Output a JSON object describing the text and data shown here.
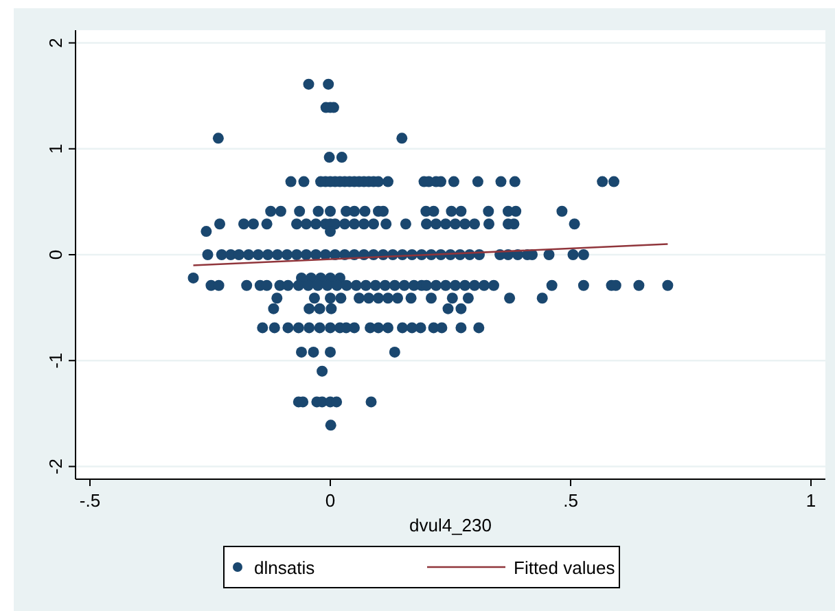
{
  "chart_data": {
    "type": "scatter",
    "xlabel": "dvul4_230",
    "xlim": [
      -0.53,
      1.03
    ],
    "ylim": [
      -2.12,
      2.12
    ],
    "xticks": [
      {
        "value": -0.5,
        "label": "-.5"
      },
      0,
      {
        "value": 0.5,
        "label": ".5"
      },
      1
    ],
    "yticks": [
      -2,
      -1,
      0,
      1,
      2
    ],
    "grid": "y",
    "legend": "bottom",
    "marker": "circle",
    "series": [
      {
        "name": "dlnsatis",
        "color": "#1a476f",
        "x": [
          -0.045,
          -0.004,
          -0.009,
          0,
          0.007,
          -0.233,
          0.149,
          -0.002,
          0.024,
          -0.082,
          -0.055,
          -0.02,
          -0.01,
          0,
          0.01,
          0.02,
          0.03,
          0.04,
          0.05,
          0.06,
          0.07,
          0.08,
          0.09,
          0.1,
          0.12,
          0.195,
          0.205,
          0.22,
          0.23,
          0.257,
          0.307,
          0.355,
          0.384,
          0.566,
          0.59,
          -0.124,
          -0.103,
          -0.064,
          -0.025,
          0,
          0.033,
          0.05,
          0.072,
          0.1,
          0.11,
          0.199,
          0.215,
          0.252,
          0.272,
          0.329,
          0.37,
          0.386,
          0.482,
          -0.23,
          -0.18,
          -0.16,
          -0.132,
          -0.07,
          -0.05,
          -0.03,
          -0.01,
          0,
          0.01,
          0.03,
          0.05,
          0.07,
          0.09,
          0.116,
          0.157,
          0.2,
          0.22,
          0.24,
          0.26,
          0.28,
          0.3,
          0.33,
          0.37,
          0.382,
          0.508,
          -0.258,
          0,
          -0.255,
          -0.226,
          -0.207,
          -0.19,
          -0.17,
          -0.15,
          -0.13,
          -0.11,
          -0.09,
          -0.07,
          -0.05,
          -0.03,
          -0.01,
          0.01,
          0.03,
          0.05,
          0.07,
          0.09,
          0.11,
          0.13,
          0.15,
          0.17,
          0.19,
          0.21,
          0.23,
          0.25,
          0.27,
          0.29,
          0.31,
          0.353,
          0.37,
          0.39,
          0.41,
          0.42,
          0.455,
          0.505,
          0.527,
          -0.285,
          -0.06,
          -0.04,
          -0.02,
          0,
          0.02,
          -0.248,
          -0.232,
          -0.174,
          -0.146,
          -0.132,
          -0.105,
          -0.088,
          -0.066,
          -0.046,
          -0.026,
          -0.006,
          0.014,
          0.034,
          0.054,
          0.074,
          0.094,
          0.114,
          0.134,
          0.154,
          0.174,
          0.19,
          0.2,
          0.22,
          0.24,
          0.26,
          0.28,
          0.3,
          0.32,
          0.34,
          0.461,
          0.527,
          0.585,
          0.594,
          0.642,
          0.702,
          -0.111,
          -0.033,
          0,
          0.022,
          0.06,
          0.08,
          0.1,
          0.12,
          0.14,
          0.168,
          0.21,
          0.254,
          0.287,
          0.373,
          0.441,
          -0.118,
          -0.044,
          -0.022,
          0.002,
          0.245,
          0.272,
          -0.141,
          -0.116,
          -0.088,
          -0.066,
          -0.044,
          -0.022,
          0,
          0.02,
          0.033,
          0.05,
          0.083,
          0.1,
          0.12,
          0.15,
          0.17,
          0.188,
          0.215,
          0.232,
          0.272,
          0.309,
          -0.06,
          -0.035,
          0,
          0.134,
          -0.017,
          -0.066,
          -0.057,
          -0.028,
          -0.017,
          0,
          0.013,
          0.085,
          0.001
        ],
        "values": [
          1.61,
          1.61,
          1.39,
          1.39,
          1.39,
          1.1,
          1.1,
          0.92,
          0.92,
          0.69,
          0.69,
          0.69,
          0.69,
          0.69,
          0.69,
          0.69,
          0.69,
          0.69,
          0.69,
          0.69,
          0.69,
          0.69,
          0.69,
          0.69,
          0.69,
          0.69,
          0.69,
          0.69,
          0.69,
          0.69,
          0.69,
          0.69,
          0.69,
          0.69,
          0.69,
          0.41,
          0.41,
          0.41,
          0.41,
          0.41,
          0.41,
          0.41,
          0.41,
          0.41,
          0.41,
          0.41,
          0.41,
          0.41,
          0.41,
          0.41,
          0.41,
          0.41,
          0.41,
          0.29,
          0.29,
          0.29,
          0.29,
          0.29,
          0.29,
          0.29,
          0.29,
          0.29,
          0.29,
          0.29,
          0.29,
          0.29,
          0.29,
          0.29,
          0.29,
          0.29,
          0.29,
          0.29,
          0.29,
          0.29,
          0.29,
          0.29,
          0.29,
          0.29,
          0.29,
          0.22,
          0.22,
          0,
          0,
          0,
          0,
          0,
          0,
          0,
          0,
          0,
          0,
          0,
          0,
          0,
          0,
          0,
          0,
          0,
          0,
          0,
          0,
          0,
          0,
          0,
          0,
          0,
          0,
          0,
          0,
          0,
          0,
          0,
          0,
          0,
          0,
          0,
          0,
          0,
          -0.22,
          -0.22,
          -0.22,
          -0.22,
          -0.22,
          -0.22,
          -0.29,
          -0.29,
          -0.29,
          -0.29,
          -0.29,
          -0.29,
          -0.29,
          -0.29,
          -0.29,
          -0.29,
          -0.29,
          -0.29,
          -0.29,
          -0.29,
          -0.29,
          -0.29,
          -0.29,
          -0.29,
          -0.29,
          -0.29,
          -0.29,
          -0.29,
          -0.29,
          -0.29,
          -0.29,
          -0.29,
          -0.29,
          -0.29,
          -0.29,
          -0.29,
          -0.29,
          -0.29,
          -0.29,
          -0.29,
          -0.29,
          -0.41,
          -0.41,
          -0.41,
          -0.41,
          -0.41,
          -0.41,
          -0.41,
          -0.41,
          -0.41,
          -0.41,
          -0.41,
          -0.41,
          -0.41,
          -0.41,
          -0.41,
          -0.51,
          -0.51,
          -0.51,
          -0.51,
          -0.51,
          -0.51,
          -0.69,
          -0.69,
          -0.69,
          -0.69,
          -0.69,
          -0.69,
          -0.69,
          -0.69,
          -0.69,
          -0.69,
          -0.69,
          -0.69,
          -0.69,
          -0.69,
          -0.69,
          -0.69,
          -0.69,
          -0.69,
          -0.69,
          -0.69,
          -0.92,
          -0.92,
          -0.92,
          -0.92,
          -1.1,
          -1.39,
          -1.39,
          -1.39,
          -1.39,
          -1.39,
          -1.39,
          -1.39,
          -1.61
        ]
      },
      {
        "name": "Fitted values",
        "type": "line",
        "color": "#90353b",
        "marker": "none",
        "x": [
          -0.285,
          0.702
        ],
        "values": [
          -0.1,
          0.1
        ]
      }
    ]
  }
}
